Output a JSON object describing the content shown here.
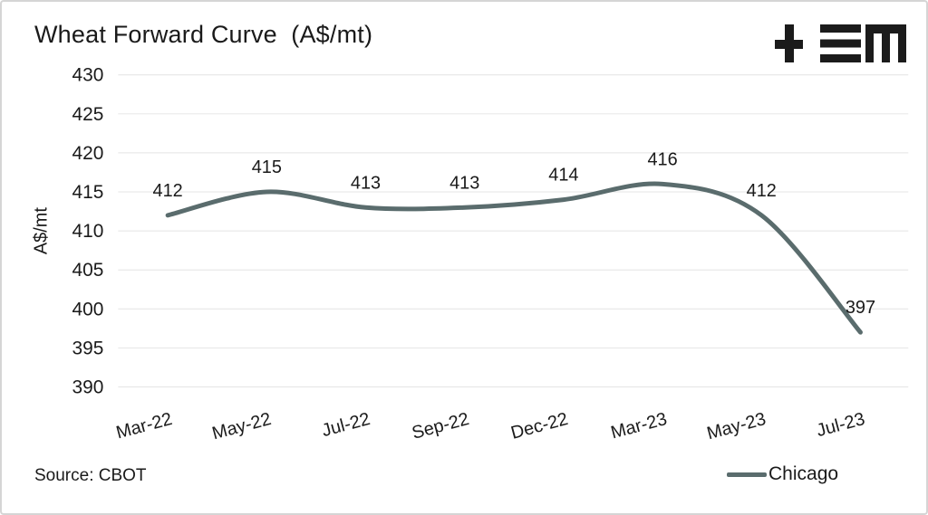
{
  "header": {
    "title": "Wheat Forward Curve  (A$/mt)"
  },
  "logo": {
    "name": "TEM logo",
    "color": "#1b1b1b"
  },
  "footer": {
    "source": "Source: CBOT"
  },
  "chart_data": {
    "type": "line",
    "title": "Wheat Forward Curve (A$/mt)",
    "categories": [
      "Mar-22",
      "May-22",
      "Jul-22",
      "Sep-22",
      "Dec-22",
      "Mar-23",
      "May-23",
      "Jul-23"
    ],
    "series": [
      {
        "name": "Chicago",
        "color": "#5a6c6d",
        "values": [
          412,
          415,
          413,
          413,
          414,
          416,
          412,
          397
        ]
      }
    ],
    "xlabel": "",
    "ylabel": "A$/mt",
    "ylim": [
      390,
      430
    ],
    "ytick_step": 5,
    "grid": "horizontal",
    "grid_color": "#e4e4e4",
    "text_color": "#1a1a1a",
    "line_style": "smooth",
    "data_labels": true,
    "legend_position": "bottom-right",
    "x_label_rotation_deg": -15
  }
}
